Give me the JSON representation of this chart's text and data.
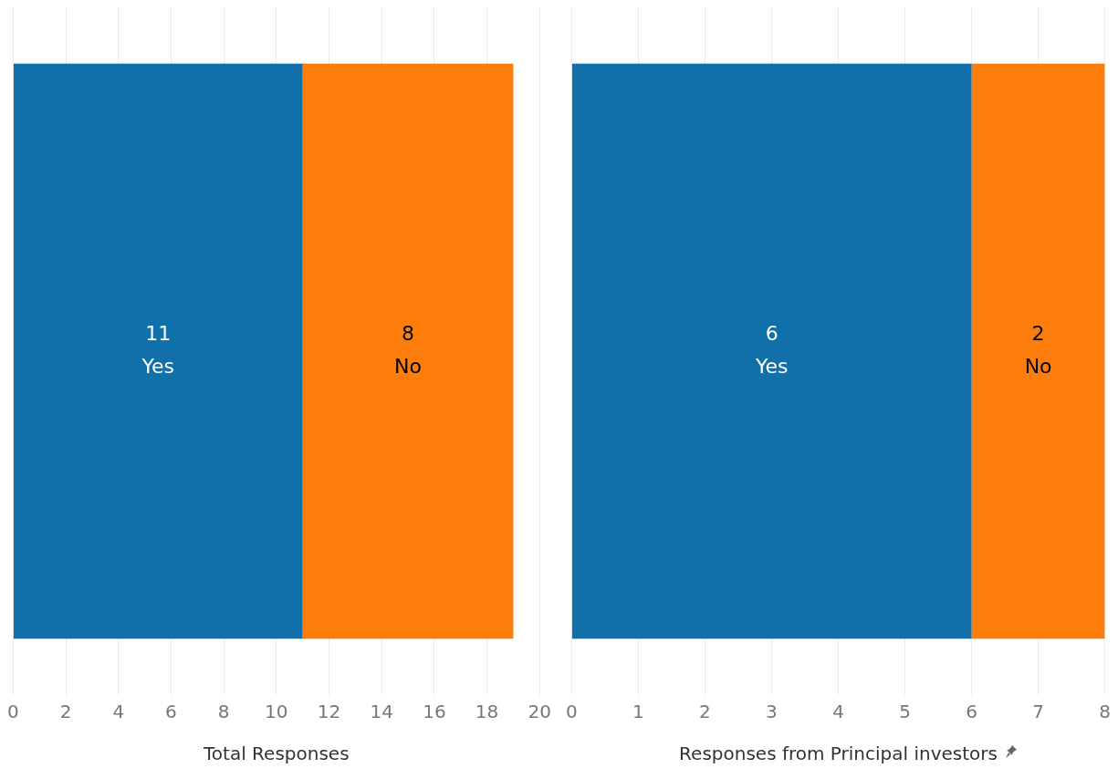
{
  "chart_data": [
    {
      "type": "bar",
      "orientation": "horizontal",
      "stacked": true,
      "categories": [
        null
      ],
      "xlabel": "Total Responses",
      "xlim": [
        0,
        20
      ],
      "xticks": [
        0,
        2,
        4,
        6,
        8,
        10,
        12,
        14,
        16,
        18,
        20
      ],
      "grid": "x",
      "legend": false,
      "data_labels": true,
      "series": [
        {
          "name": "Yes",
          "color": "#1170aa",
          "values": [
            11
          ]
        },
        {
          "name": "No",
          "color": "#fc7d0b",
          "values": [
            8
          ]
        }
      ]
    },
    {
      "type": "bar",
      "orientation": "horizontal",
      "stacked": true,
      "categories": [
        null
      ],
      "xlabel": "Responses from Principal investors",
      "xlim": [
        0,
        8
      ],
      "xticks": [
        0,
        1,
        2,
        3,
        4,
        5,
        6,
        7,
        8
      ],
      "grid": "x",
      "legend": false,
      "data_labels": true,
      "series": [
        {
          "name": "Yes",
          "color": "#1170aa",
          "values": [
            6
          ]
        },
        {
          "name": "No",
          "color": "#fc7d0b",
          "values": [
            2
          ]
        }
      ]
    }
  ]
}
